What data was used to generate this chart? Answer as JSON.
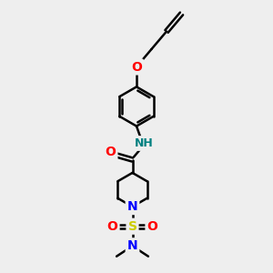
{
  "bg_color": "#eeeeee",
  "bond_color": "#000000",
  "atom_colors": {
    "O": "#ff0000",
    "N": "#0000ff",
    "S": "#cccc00",
    "NH": "#008080",
    "C": "#000000"
  },
  "figsize": [
    3.0,
    3.0
  ],
  "dpi": 100,
  "xlim": [
    0,
    10
  ],
  "ylim": [
    0,
    10
  ]
}
